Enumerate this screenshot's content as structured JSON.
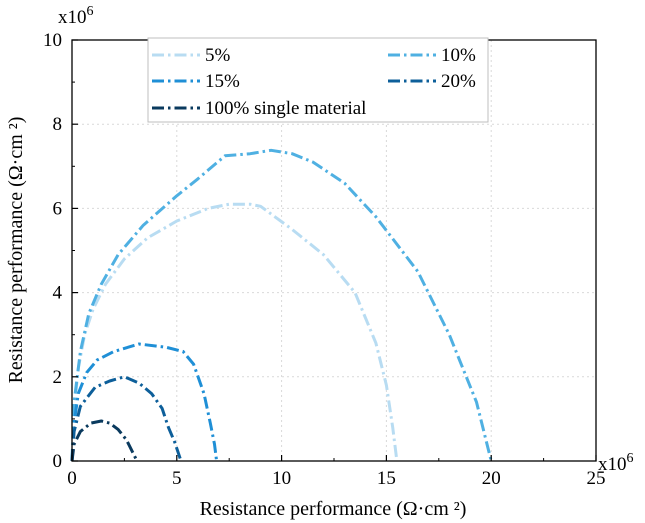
{
  "chart_data": {
    "type": "line",
    "xlabel": "Resistance performance (Ω·cm ²)",
    "ylabel": "Resistance performance (Ω·cm ²)",
    "x_multiplier": "x10",
    "x_multiplier_exp": "6",
    "y_multiplier": "x10",
    "y_multiplier_exp": "6",
    "xlim": [
      0,
      25
    ],
    "ylim": [
      0,
      10
    ],
    "x_ticks": [
      0,
      5,
      10,
      15,
      20,
      25
    ],
    "y_ticks": [
      0,
      2,
      4,
      6,
      8,
      10
    ],
    "grid": true,
    "legend_position": "top-center",
    "series": [
      {
        "name": "5%",
        "color": "#b8dcf2",
        "x": [
          0,
          0.1,
          0.3,
          0.6,
          1.0,
          1.6,
          2.5,
          3.6,
          5.0,
          6.5,
          7.5,
          8.5,
          9.0,
          10.5,
          12.0,
          13.5,
          14.5,
          15.0,
          15.3,
          15.5
        ],
        "y": [
          0,
          1.2,
          2.2,
          3.0,
          3.6,
          4.2,
          4.8,
          5.3,
          5.7,
          6.0,
          6.1,
          6.1,
          6.05,
          5.5,
          4.9,
          4.0,
          2.8,
          1.8,
          0.8,
          0
        ]
      },
      {
        "name": "10%",
        "color": "#4fb0e2",
        "x": [
          0,
          0.1,
          0.4,
          0.8,
          1.4,
          2.2,
          3.4,
          5.0,
          6.0,
          7.3,
          8.5,
          9.5,
          10.5,
          11.5,
          13.0,
          14.5,
          16.5,
          18.0,
          19.3,
          20.0
        ],
        "y": [
          0,
          1.4,
          2.6,
          3.5,
          4.2,
          4.9,
          5.6,
          6.3,
          6.7,
          7.25,
          7.3,
          7.38,
          7.3,
          7.1,
          6.6,
          5.8,
          4.5,
          3.0,
          1.4,
          0
        ]
      },
      {
        "name": "15%",
        "color": "#1f8fd6",
        "x": [
          0,
          0.1,
          0.3,
          0.7,
          1.2,
          2.0,
          3.2,
          4.5,
          5.3,
          5.8,
          6.3,
          6.6,
          6.8,
          6.9
        ],
        "y": [
          0,
          0.9,
          1.6,
          2.1,
          2.4,
          2.6,
          2.78,
          2.7,
          2.6,
          2.3,
          1.6,
          0.9,
          0.4,
          0
        ]
      },
      {
        "name": "20%",
        "color": "#0d5f9a",
        "x": [
          0,
          0.1,
          0.4,
          1.1,
          1.8,
          2.5,
          3.2,
          3.8,
          4.3,
          4.6,
          4.9,
          5.1,
          5.2
        ],
        "y": [
          0,
          0.7,
          1.3,
          1.75,
          1.9,
          2.0,
          1.85,
          1.6,
          1.25,
          0.8,
          0.45,
          0.15,
          0
        ]
      },
      {
        "name": "100% single material",
        "color": "#0a3a5e",
        "x": [
          0,
          0.1,
          0.4,
          0.9,
          1.4,
          1.8,
          2.2,
          2.6,
          2.9,
          3.1
        ],
        "y": [
          0,
          0.4,
          0.7,
          0.9,
          0.95,
          0.9,
          0.75,
          0.5,
          0.2,
          0
        ]
      }
    ]
  }
}
